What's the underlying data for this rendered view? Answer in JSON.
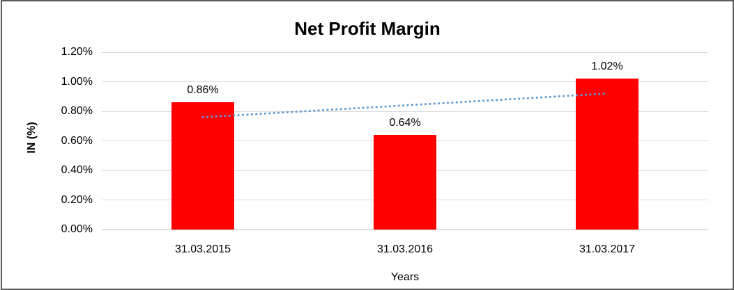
{
  "chart_data": {
    "type": "bar",
    "title": "Net Profit Margin",
    "categories": [
      "31.03.2015",
      "31.03.2016",
      "31.03.2017"
    ],
    "values": [
      0.86,
      0.64,
      1.02
    ],
    "data_labels": [
      "0.86%",
      "0.64%",
      "1.02%"
    ],
    "xlabel": "Years",
    "ylabel": "IN (%)",
    "ylim": [
      0,
      1.2
    ],
    "ytick_values": [
      0,
      0.2,
      0.4,
      0.6,
      0.8,
      1.0,
      1.2
    ],
    "ytick_labels": [
      "0.00%",
      "0.20%",
      "0.40%",
      "0.60%",
      "0.80%",
      "1.00%",
      "1.20%"
    ],
    "grid": "horizontal",
    "legend": "none",
    "trendline": {
      "type": "linear",
      "style": "dotted",
      "start_value": 0.76,
      "end_value": 0.92
    }
  },
  "colors": {
    "bar": "#ff0000",
    "trendline": "#5b9bd5",
    "gridline": "#d9d9d9",
    "axis_line": "#bfbfbf",
    "text": "#000000",
    "frame_border": "#595959"
  }
}
